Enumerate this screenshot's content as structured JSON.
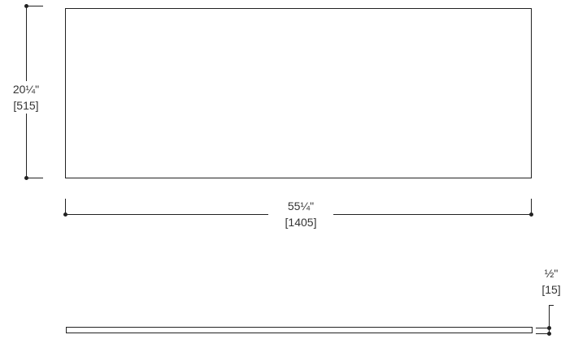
{
  "height_dim": {
    "imperial": "20¼\"",
    "metric": "[515]"
  },
  "width_dim": {
    "imperial": "55¼\"",
    "metric": "[1405]"
  },
  "thickness_dim": {
    "imperial": "½\"",
    "metric": "[15]"
  }
}
